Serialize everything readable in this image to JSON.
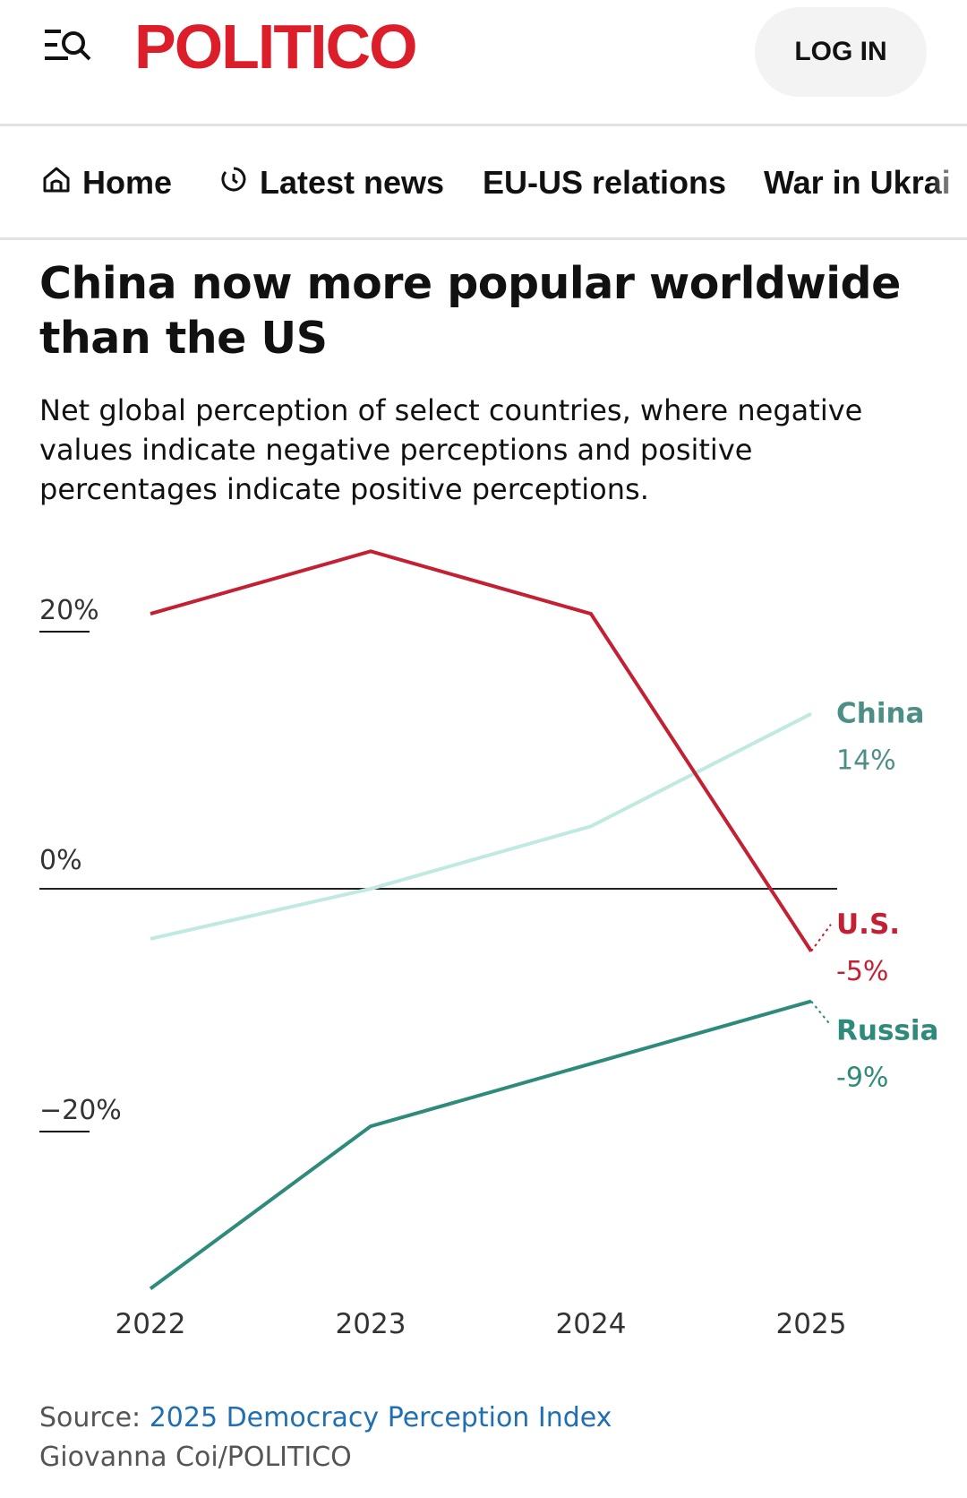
{
  "header": {
    "logo": "POLITICO",
    "login_label": "LOG IN"
  },
  "nav": {
    "items": [
      {
        "label": "Home",
        "icon": "home-icon"
      },
      {
        "label": "Latest news",
        "icon": "clock-icon"
      },
      {
        "label": "EU-US relations"
      },
      {
        "label": "War in Ukrai"
      }
    ]
  },
  "article": {
    "headline": "China now more popular worldwide than the US",
    "subtitle": "Net global perception of select countries, where negative values indicate negative perceptions and positive percentages indicate positive perceptions."
  },
  "chart_data": {
    "type": "line",
    "title": "China now more popular worldwide than the US",
    "x": [
      "2022",
      "2023",
      "2024",
      "2025"
    ],
    "y_ticks": [
      {
        "value": 20,
        "label": "20%"
      },
      {
        "value": 0,
        "label": "0%"
      },
      {
        "value": -20,
        "label": "−20%"
      }
    ],
    "ylim": [
      -33,
      28
    ],
    "series": [
      {
        "name": "U.S.",
        "values": [
          22,
          27,
          22,
          -5
        ],
        "end_label": "-5%",
        "color": "#c32034"
      },
      {
        "name": "China",
        "values": [
          -4,
          0,
          5,
          14
        ],
        "end_label": "14%",
        "color": "#bfe9e1"
      },
      {
        "name": "Russia",
        "values": [
          -32,
          -19,
          -14,
          -9
        ],
        "end_label": "-9%",
        "color": "#2e8a7a"
      }
    ],
    "label_colors": {
      "U.S.": "#c32034",
      "China": "#4d8f86",
      "Russia": "#2e8a7a"
    },
    "zero_line": true,
    "legend": "end-of-line labels, right"
  },
  "footer": {
    "source_prefix": "Source: ",
    "source_link": "2025 Democracy Perception Index",
    "credit": "Giovanna Coi/POLITICO"
  }
}
